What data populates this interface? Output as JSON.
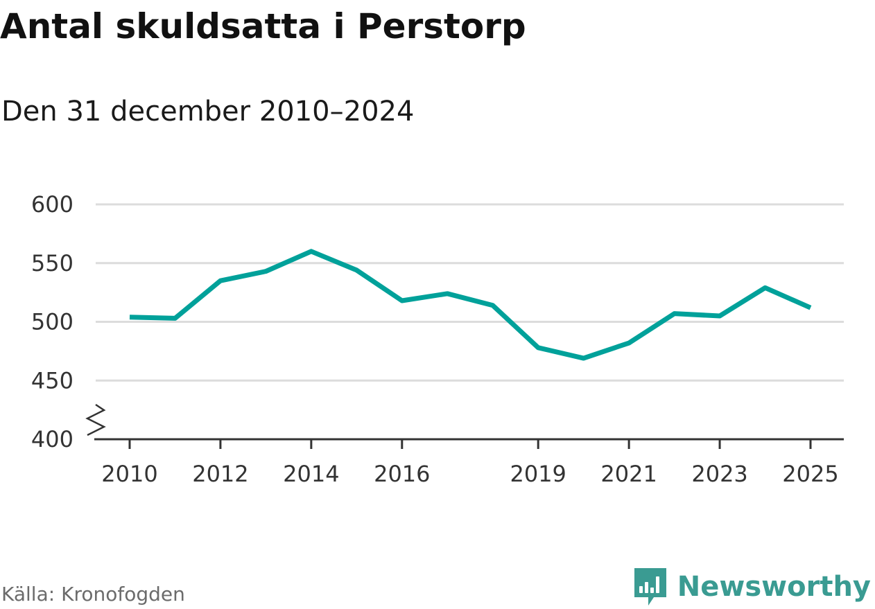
{
  "header": {
    "title": "Antal skuldsatta i Perstorp",
    "subtitle": "Den 31 december 2010–2024"
  },
  "footer": {
    "source": "Källa: Kronofogden",
    "brand": "Newsworthy",
    "brand_icon": "bar-chart-speech-bubble-icon"
  },
  "colors": {
    "line": "#00a19a",
    "grid": "#dcdcdc",
    "axis": "#333333",
    "brand": "#3a9b92"
  },
  "chart_data": {
    "type": "line",
    "title": "Antal skuldsatta i Perstorp",
    "subtitle": "Den 31 december 2010–2024",
    "xlabel": "",
    "ylabel": "",
    "ylim": [
      400,
      600
    ],
    "xlim": [
      2010,
      2025
    ],
    "y_axis_break": true,
    "grid": true,
    "y_ticks": [
      400,
      450,
      500,
      550,
      600
    ],
    "x_ticks": [
      2010,
      2012,
      2014,
      2016,
      2019,
      2021,
      2023,
      2025
    ],
    "series": [
      {
        "x": [
          2010,
          2011,
          2012,
          2013,
          2014,
          2015,
          2016,
          2017,
          2018,
          2019,
          2020,
          2021,
          2022,
          2023,
          2024,
          2025
        ],
        "values": [
          504,
          503,
          535,
          543,
          560,
          544,
          518,
          524,
          514,
          478,
          469,
          482,
          507,
          505,
          529,
          512
        ]
      }
    ]
  }
}
